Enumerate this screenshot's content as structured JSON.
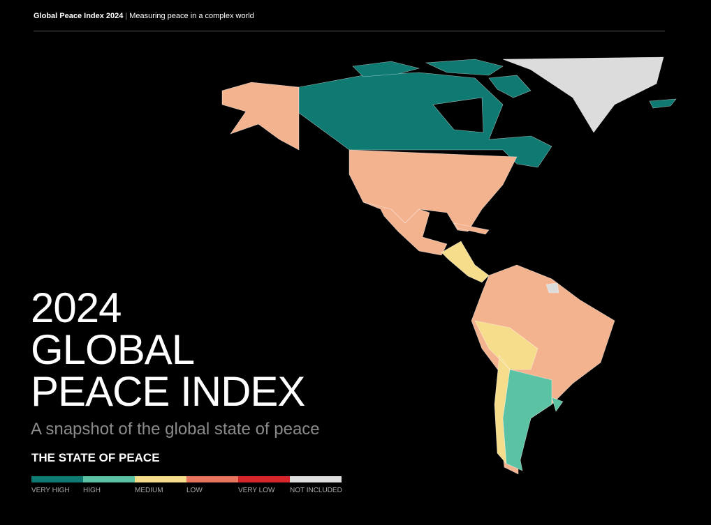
{
  "header": {
    "title": "Global Peace Index 2024",
    "tagline": "Measuring peace in a complex world"
  },
  "hero": {
    "lines": [
      "2024",
      "GLOBAL",
      "PEACE INDEX"
    ],
    "subtitle": "A snapshot of the global state of peace"
  },
  "legend": {
    "title": "THE STATE OF PEACE",
    "items": [
      {
        "label": "VERY HIGH",
        "color": "#0e7a72"
      },
      {
        "label": "HIGH",
        "color": "#5cc2a4"
      },
      {
        "label": "MEDIUM",
        "color": "#f6dd8c"
      },
      {
        "label": "LOW",
        "color": "#e8765e"
      },
      {
        "label": "VERY LOW",
        "color": "#d5262a"
      },
      {
        "label": "NOT INCLUDED",
        "color": "#dedede"
      }
    ]
  }
}
